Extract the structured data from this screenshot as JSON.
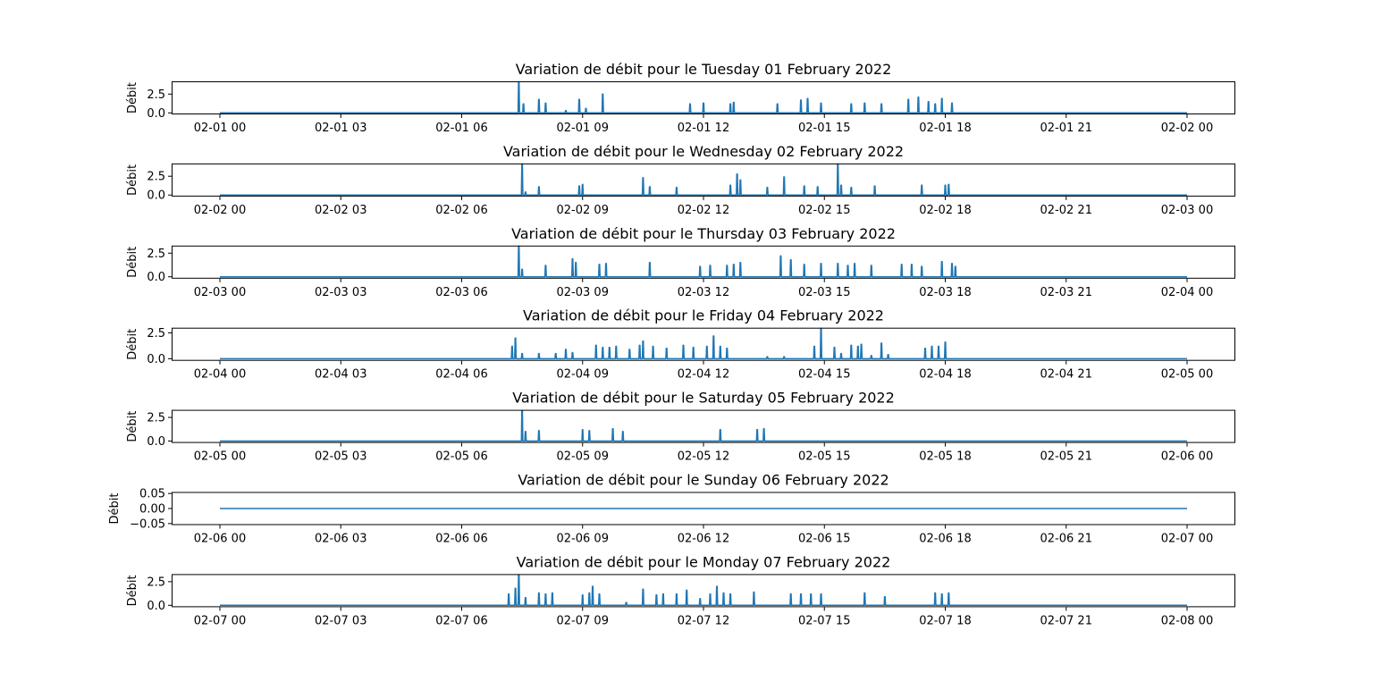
{
  "chart_data": [
    {
      "type": "line",
      "title": "Variation de débit pour le Tuesday 01 February 2022",
      "xlabel": "",
      "ylabel": "Débit",
      "x_range": [
        "02-01 00:00",
        "02-02 00:00"
      ],
      "ylim": [
        -0.2,
        4.2
      ],
      "xticks": [
        "02-01 00",
        "02-01 03",
        "02-01 06",
        "02-01 09",
        "02-01 12",
        "02-01 15",
        "02-01 18",
        "02-01 21",
        "02-02 00"
      ],
      "yticks": [
        "0.0",
        "2.5"
      ],
      "ytick_values": [
        0,
        2.5
      ],
      "color": "#1f77b4",
      "bursts": [
        {
          "x": "07:25",
          "y": 4.2
        },
        {
          "x": "07:32",
          "y": 1.2
        },
        {
          "x": "07:55",
          "y": 1.8
        },
        {
          "x": "08:05",
          "y": 1.3
        },
        {
          "x": "08:35",
          "y": 0.3
        },
        {
          "x": "08:55",
          "y": 1.8
        },
        {
          "x": "09:05",
          "y": 0.6
        },
        {
          "x": "09:30",
          "y": 2.5
        },
        {
          "x": "11:40",
          "y": 1.2
        },
        {
          "x": "12:00",
          "y": 1.3
        },
        {
          "x": "12:40",
          "y": 1.2
        },
        {
          "x": "12:45",
          "y": 1.4
        },
        {
          "x": "13:50",
          "y": 1.2
        },
        {
          "x": "14:25",
          "y": 1.7
        },
        {
          "x": "14:35",
          "y": 1.9
        },
        {
          "x": "14:55",
          "y": 1.3
        },
        {
          "x": "15:40",
          "y": 1.2
        },
        {
          "x": "16:00",
          "y": 1.3
        },
        {
          "x": "16:25",
          "y": 1.2
        },
        {
          "x": "17:05",
          "y": 1.8
        },
        {
          "x": "17:20",
          "y": 2.1
        },
        {
          "x": "17:35",
          "y": 1.5
        },
        {
          "x": "17:45",
          "y": 1.2
        },
        {
          "x": "17:55",
          "y": 1.9
        },
        {
          "x": "18:10",
          "y": 1.3
        }
      ]
    },
    {
      "type": "line",
      "title": "Variation de débit pour le Wednesday 02 February 2022",
      "xlabel": "",
      "ylabel": "Débit",
      "x_range": [
        "02-02 00:00",
        "02-03 00:00"
      ],
      "ylim": [
        -0.2,
        4.2
      ],
      "xticks": [
        "02-02 00",
        "02-02 03",
        "02-02 06",
        "02-02 09",
        "02-02 12",
        "02-02 15",
        "02-02 18",
        "02-02 21",
        "02-03 00"
      ],
      "yticks": [
        "0.0",
        "2.5"
      ],
      "ytick_values": [
        0,
        2.5
      ],
      "color": "#1f77b4",
      "bursts": [
        {
          "x": "07:30",
          "y": 4.2
        },
        {
          "x": "07:35",
          "y": 0.4
        },
        {
          "x": "07:55",
          "y": 1.1
        },
        {
          "x": "08:55",
          "y": 1.2
        },
        {
          "x": "09:00",
          "y": 1.4
        },
        {
          "x": "10:30",
          "y": 2.3
        },
        {
          "x": "10:40",
          "y": 1.1
        },
        {
          "x": "11:20",
          "y": 1.0
        },
        {
          "x": "12:40",
          "y": 1.3
        },
        {
          "x": "12:50",
          "y": 2.8
        },
        {
          "x": "12:55",
          "y": 2.0
        },
        {
          "x": "13:35",
          "y": 1.0
        },
        {
          "x": "14:00",
          "y": 2.4
        },
        {
          "x": "14:30",
          "y": 1.2
        },
        {
          "x": "14:50",
          "y": 1.1
        },
        {
          "x": "15:20",
          "y": 4.2
        },
        {
          "x": "15:25",
          "y": 1.3
        },
        {
          "x": "15:40",
          "y": 1.0
        },
        {
          "x": "16:15",
          "y": 1.2
        },
        {
          "x": "17:25",
          "y": 1.3
        },
        {
          "x": "18:00",
          "y": 1.3
        },
        {
          "x": "18:05",
          "y": 1.4
        }
      ]
    },
    {
      "type": "line",
      "title": "Variation de débit pour le Thursday 03 February 2022",
      "xlabel": "",
      "ylabel": "Débit",
      "x_range": [
        "02-03 00:00",
        "02-04 00:00"
      ],
      "ylim": [
        -0.2,
        3.3
      ],
      "xticks": [
        "02-03 00",
        "02-03 03",
        "02-03 06",
        "02-03 09",
        "02-03 12",
        "02-03 15",
        "02-03 18",
        "02-03 21",
        "02-04 00"
      ],
      "yticks": [
        "0.0",
        "2.5"
      ],
      "ytick_values": [
        0,
        2.5
      ],
      "color": "#1f77b4",
      "bursts": [
        {
          "x": "07:25",
          "y": 3.3
        },
        {
          "x": "07:30",
          "y": 0.8
        },
        {
          "x": "08:05",
          "y": 1.2
        },
        {
          "x": "08:45",
          "y": 1.9
        },
        {
          "x": "08:50",
          "y": 1.5
        },
        {
          "x": "09:25",
          "y": 1.3
        },
        {
          "x": "09:35",
          "y": 1.4
        },
        {
          "x": "10:40",
          "y": 1.5
        },
        {
          "x": "11:55",
          "y": 1.1
        },
        {
          "x": "12:10",
          "y": 1.2
        },
        {
          "x": "12:35",
          "y": 1.2
        },
        {
          "x": "12:45",
          "y": 1.3
        },
        {
          "x": "12:55",
          "y": 1.5
        },
        {
          "x": "13:55",
          "y": 2.2
        },
        {
          "x": "14:10",
          "y": 1.8
        },
        {
          "x": "14:30",
          "y": 1.3
        },
        {
          "x": "14:55",
          "y": 1.4
        },
        {
          "x": "15:20",
          "y": 1.4
        },
        {
          "x": "15:35",
          "y": 1.2
        },
        {
          "x": "15:45",
          "y": 1.4
        },
        {
          "x": "16:10",
          "y": 1.2
        },
        {
          "x": "16:55",
          "y": 1.3
        },
        {
          "x": "17:10",
          "y": 1.3
        },
        {
          "x": "17:25",
          "y": 1.1
        },
        {
          "x": "17:55",
          "y": 1.6
        },
        {
          "x": "18:10",
          "y": 1.4
        },
        {
          "x": "18:15",
          "y": 1.1
        }
      ]
    },
    {
      "type": "line",
      "title": "Variation de débit pour le Friday 04 February 2022",
      "xlabel": "",
      "ylabel": "Débit",
      "x_range": [
        "02-04 00:00",
        "02-05 00:00"
      ],
      "ylim": [
        -0.2,
        3.0
      ],
      "xticks": [
        "02-04 00",
        "02-04 03",
        "02-04 06",
        "02-04 09",
        "02-04 12",
        "02-04 15",
        "02-04 18",
        "02-04 21",
        "02-05 00"
      ],
      "yticks": [
        "0.0",
        "2.5"
      ],
      "ytick_values": [
        0,
        2.5
      ],
      "color": "#1f77b4",
      "bursts": [
        {
          "x": "07:15",
          "y": 1.2
        },
        {
          "x": "07:20",
          "y": 2.0
        },
        {
          "x": "07:30",
          "y": 0.5
        },
        {
          "x": "07:55",
          "y": 0.5
        },
        {
          "x": "08:20",
          "y": 0.5
        },
        {
          "x": "08:35",
          "y": 0.9
        },
        {
          "x": "08:45",
          "y": 0.6
        },
        {
          "x": "09:20",
          "y": 1.3
        },
        {
          "x": "09:30",
          "y": 1.1
        },
        {
          "x": "09:40",
          "y": 1.1
        },
        {
          "x": "09:50",
          "y": 1.2
        },
        {
          "x": "10:10",
          "y": 0.9
        },
        {
          "x": "10:25",
          "y": 1.3
        },
        {
          "x": "10:30",
          "y": 1.7
        },
        {
          "x": "10:45",
          "y": 1.2
        },
        {
          "x": "11:05",
          "y": 1.0
        },
        {
          "x": "11:30",
          "y": 1.3
        },
        {
          "x": "11:45",
          "y": 1.1
        },
        {
          "x": "12:05",
          "y": 1.2
        },
        {
          "x": "12:15",
          "y": 2.2
        },
        {
          "x": "12:25",
          "y": 1.2
        },
        {
          "x": "12:35",
          "y": 1.0
        },
        {
          "x": "13:35",
          "y": 0.2
        },
        {
          "x": "14:00",
          "y": 0.2
        },
        {
          "x": "14:45",
          "y": 1.2
        },
        {
          "x": "14:55",
          "y": 3.0
        },
        {
          "x": "15:15",
          "y": 1.1
        },
        {
          "x": "15:25",
          "y": 0.5
        },
        {
          "x": "15:40",
          "y": 1.3
        },
        {
          "x": "15:50",
          "y": 1.2
        },
        {
          "x": "15:55",
          "y": 1.4
        },
        {
          "x": "16:10",
          "y": 0.3
        },
        {
          "x": "16:25",
          "y": 1.5
        },
        {
          "x": "16:35",
          "y": 0.4
        },
        {
          "x": "17:30",
          "y": 1.0
        },
        {
          "x": "17:40",
          "y": 1.2
        },
        {
          "x": "17:50",
          "y": 1.2
        },
        {
          "x": "18:00",
          "y": 1.6
        }
      ]
    },
    {
      "type": "line",
      "title": "Variation de débit pour le Saturday 05 February 2022",
      "xlabel": "",
      "ylabel": "Débit",
      "x_range": [
        "02-05 00:00",
        "02-06 00:00"
      ],
      "ylim": [
        -0.2,
        3.3
      ],
      "xticks": [
        "02-05 00",
        "02-05 03",
        "02-05 06",
        "02-05 09",
        "02-05 12",
        "02-05 15",
        "02-05 18",
        "02-05 21",
        "02-06 00"
      ],
      "yticks": [
        "0.0",
        "2.5"
      ],
      "ytick_values": [
        0,
        2.5
      ],
      "color": "#1f77b4",
      "bursts": [
        {
          "x": "07:30",
          "y": 3.3
        },
        {
          "x": "07:35",
          "y": 1.0
        },
        {
          "x": "07:55",
          "y": 1.1
        },
        {
          "x": "09:00",
          "y": 1.2
        },
        {
          "x": "09:10",
          "y": 1.1
        },
        {
          "x": "09:45",
          "y": 1.3
        },
        {
          "x": "10:00",
          "y": 1.0
        },
        {
          "x": "12:25",
          "y": 1.2
        },
        {
          "x": "13:20",
          "y": 1.2
        },
        {
          "x": "13:30",
          "y": 1.3
        }
      ]
    },
    {
      "type": "line",
      "title": "Variation de débit pour le Sunday 06 February 2022",
      "xlabel": "",
      "ylabel": "Débit",
      "x_range": [
        "02-06 00:00",
        "02-07 00:00"
      ],
      "ylim": [
        -0.055,
        0.055
      ],
      "xticks": [
        "02-06 00",
        "02-06 03",
        "02-06 06",
        "02-06 09",
        "02-06 12",
        "02-06 15",
        "02-06 18",
        "02-06 21",
        "02-07 00"
      ],
      "yticks": [
        "−0.05",
        "0.00",
        "0.05"
      ],
      "ytick_values": [
        -0.05,
        0,
        0.05
      ],
      "color": "#1f77b4",
      "bursts": []
    },
    {
      "type": "line",
      "title": "Variation de débit pour le Monday 07 February 2022",
      "xlabel": "",
      "ylabel": "Débit",
      "x_range": [
        "02-07 00:00",
        "02-08 00:00"
      ],
      "ylim": [
        -0.2,
        3.3
      ],
      "xticks": [
        "02-07 00",
        "02-07 03",
        "02-07 06",
        "02-07 09",
        "02-07 12",
        "02-07 15",
        "02-07 18",
        "02-07 21",
        "02-08 00"
      ],
      "yticks": [
        "0.0",
        "2.5"
      ],
      "ytick_values": [
        0,
        2.5
      ],
      "color": "#1f77b4",
      "bursts": [
        {
          "x": "07:10",
          "y": 1.2
        },
        {
          "x": "07:20",
          "y": 1.8
        },
        {
          "x": "07:25",
          "y": 3.3
        },
        {
          "x": "07:35",
          "y": 0.8
        },
        {
          "x": "07:55",
          "y": 1.3
        },
        {
          "x": "08:05",
          "y": 1.2
        },
        {
          "x": "08:15",
          "y": 1.3
        },
        {
          "x": "09:00",
          "y": 1.1
        },
        {
          "x": "09:10",
          "y": 1.3
        },
        {
          "x": "09:15",
          "y": 2.0
        },
        {
          "x": "09:25",
          "y": 1.2
        },
        {
          "x": "10:05",
          "y": 0.3
        },
        {
          "x": "10:30",
          "y": 1.7
        },
        {
          "x": "10:50",
          "y": 1.1
        },
        {
          "x": "11:00",
          "y": 1.2
        },
        {
          "x": "11:20",
          "y": 1.2
        },
        {
          "x": "11:35",
          "y": 1.6
        },
        {
          "x": "11:55",
          "y": 0.7
        },
        {
          "x": "12:10",
          "y": 1.2
        },
        {
          "x": "12:20",
          "y": 2.0
        },
        {
          "x": "12:30",
          "y": 1.3
        },
        {
          "x": "12:40",
          "y": 1.2
        },
        {
          "x": "13:15",
          "y": 1.4
        },
        {
          "x": "14:10",
          "y": 1.2
        },
        {
          "x": "14:25",
          "y": 1.2
        },
        {
          "x": "14:40",
          "y": 1.2
        },
        {
          "x": "14:55",
          "y": 1.2
        },
        {
          "x": "16:00",
          "y": 1.3
        },
        {
          "x": "16:30",
          "y": 0.9
        },
        {
          "x": "17:45",
          "y": 1.3
        },
        {
          "x": "17:55",
          "y": 1.2
        },
        {
          "x": "18:05",
          "y": 1.3
        }
      ]
    }
  ]
}
